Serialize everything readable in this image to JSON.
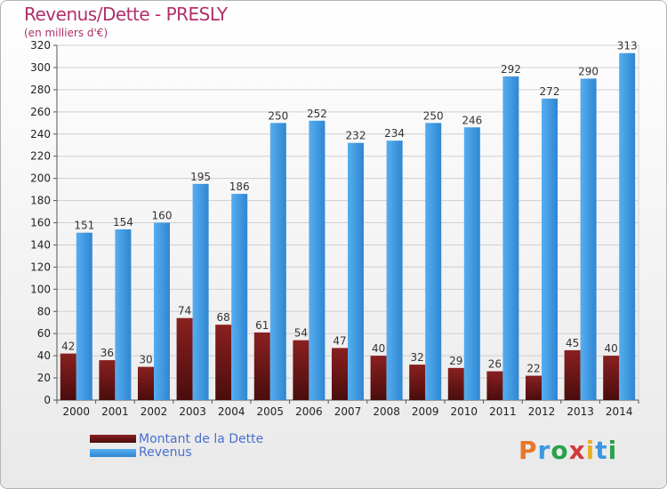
{
  "header": {
    "title": "Revenus/Dette - PRESLY",
    "subtitle": "(en milliers d'€)"
  },
  "colors": {
    "dette": "#7b1a1a",
    "revenus": "#3d97e0",
    "title": "#b0306b",
    "legend_text": "#4a6fd1"
  },
  "legend": {
    "dette_label": "Montant de la Dette",
    "revenus_label": "Revenus"
  },
  "logo": {
    "text": "Proxiti"
  },
  "chart_data": {
    "type": "bar",
    "categories": [
      "2000",
      "2001",
      "2002",
      "2003",
      "2004",
      "2005",
      "2006",
      "2007",
      "2008",
      "2009",
      "2010",
      "2011",
      "2012",
      "2013",
      "2014"
    ],
    "series": [
      {
        "name": "Montant de la Dette",
        "values": [
          42,
          36,
          30,
          74,
          68,
          61,
          54,
          47,
          40,
          32,
          29,
          26,
          22,
          45,
          40
        ]
      },
      {
        "name": "Revenus",
        "values": [
          151,
          154,
          160,
          195,
          186,
          250,
          252,
          232,
          234,
          250,
          246,
          292,
          272,
          290,
          313
        ]
      }
    ],
    "ylim": [
      0,
      320
    ],
    "yticks": [
      0,
      20,
      40,
      60,
      80,
      100,
      120,
      140,
      160,
      180,
      200,
      220,
      240,
      260,
      280,
      300,
      320
    ],
    "grid": true,
    "legend_position": "bottom-left"
  }
}
